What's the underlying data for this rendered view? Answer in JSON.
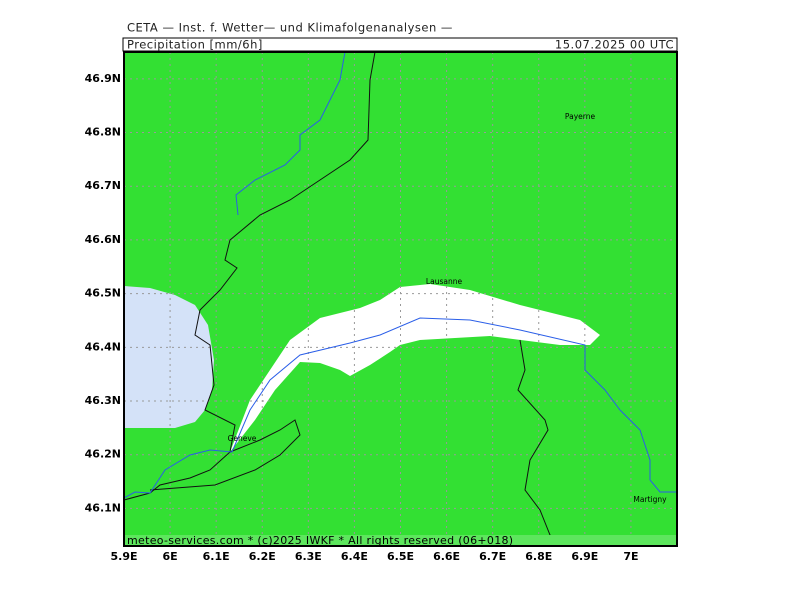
{
  "header": {
    "title": "CETA — Inst. f. Wetter— und Klimafolgenanalysen —",
    "field": "Precipitation [mm/6h]",
    "time": "15.07.2025 00 UTC"
  },
  "map": {
    "xlim": [
      5.9,
      7.1
    ],
    "ylim": [
      46.03,
      46.95
    ],
    "xticks": [
      {
        "value": 5.9,
        "label": "5.9E"
      },
      {
        "value": 6.0,
        "label": "6E"
      },
      {
        "value": 6.1,
        "label": "6.1E"
      },
      {
        "value": 6.2,
        "label": "6.2E"
      },
      {
        "value": 6.3,
        "label": "6.3E"
      },
      {
        "value": 6.4,
        "label": "6.4E"
      },
      {
        "value": 6.5,
        "label": "6.5E"
      },
      {
        "value": 6.6,
        "label": "6.6E"
      },
      {
        "value": 6.7,
        "label": "6.7E"
      },
      {
        "value": 6.8,
        "label": "6.8E"
      },
      {
        "value": 6.9,
        "label": "6.9E"
      },
      {
        "value": 7.0,
        "label": "7E"
      }
    ],
    "yticks": [
      {
        "value": 46.1,
        "label": "46.1N"
      },
      {
        "value": 46.2,
        "label": "46.2N"
      },
      {
        "value": 46.3,
        "label": "46.3N"
      },
      {
        "value": 46.4,
        "label": "46.4N"
      },
      {
        "value": 46.5,
        "label": "46.5N"
      },
      {
        "value": 46.6,
        "label": "46.6N"
      },
      {
        "value": 46.7,
        "label": "46.7N"
      },
      {
        "value": 46.8,
        "label": "46.8N"
      },
      {
        "value": 46.9,
        "label": "46.9N"
      }
    ],
    "cities": [
      "Payerne",
      "Lausanne",
      "Geneve",
      "Martigny"
    ]
  },
  "footer": "meteo-services.com * (c)2025 IWKF * All rights reserved (06+018)"
}
